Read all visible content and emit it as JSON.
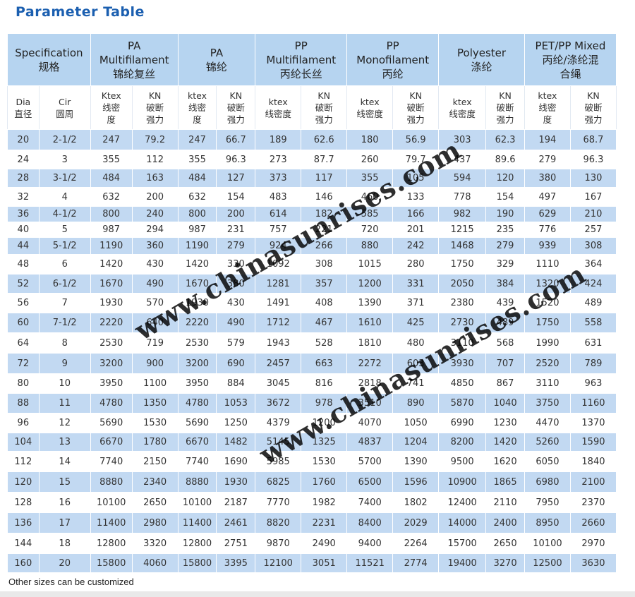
{
  "title": "Parameter Table",
  "header": {
    "specification": [
      "Specification",
      "规格"
    ],
    "groups": [
      [
        "PA",
        "Multifilament",
        "锦纶复丝"
      ],
      [
        "PA",
        "锦纶"
      ],
      [
        "PP",
        "Multifilament",
        "丙纶长丝"
      ],
      [
        "PP",
        "Monofilament",
        "丙纶"
      ],
      [
        "Polyester",
        "涤纶"
      ],
      [
        "PET/PP Mixed",
        "丙纶/涤纶混",
        "合绳"
      ]
    ],
    "sub": [
      [
        "Dia",
        "直径"
      ],
      [
        "Cir",
        "圆周"
      ],
      [
        "Ktex",
        "线密",
        "度"
      ],
      [
        "KN",
        "破断",
        "强力"
      ],
      [
        "ktex",
        "线密",
        "度"
      ],
      [
        "KN",
        "破断",
        "强力"
      ],
      [
        "ktex",
        "线密度"
      ],
      [
        "KN",
        "破断",
        "强力"
      ],
      [
        "ktex",
        "线密度"
      ],
      [
        "KN",
        "破断",
        "强力"
      ],
      [
        "ktex",
        "线密度"
      ],
      [
        "KN",
        "破断",
        "强力"
      ],
      [
        "ktex",
        "线密",
        "度"
      ],
      [
        "KN",
        "破断",
        "强力"
      ]
    ]
  },
  "rows": [
    [
      "20",
      "2-1/2",
      "247",
      "79.2",
      "247",
      "66.7",
      "189",
      "62.6",
      "180",
      "56.9",
      "303",
      "62.3",
      "194",
      "68.7"
    ],
    [
      "24",
      "3",
      "355",
      "112",
      "355",
      "96.3",
      "273",
      "87.7",
      "260",
      "79.7",
      "437",
      "89.6",
      "279",
      "96.3"
    ],
    [
      "28",
      "3-1/2",
      "484",
      "163",
      "484",
      "127",
      "373",
      "117",
      "355",
      "105",
      "594",
      "120",
      "380",
      "130"
    ],
    [
      "32",
      "4",
      "632",
      "200",
      "632",
      "154",
      "483",
      "146",
      "460",
      "133",
      "778",
      "154",
      "497",
      "167"
    ],
    [
      "36",
      "4-1/2",
      "800",
      "240",
      "800",
      "200",
      "614",
      "182",
      "585",
      "166",
      "982",
      "190",
      "629",
      "210"
    ],
    [
      "40",
      "5",
      "987",
      "294",
      "987",
      "231",
      "757",
      "221",
      "720",
      "201",
      "1215",
      "235",
      "776",
      "257"
    ],
    [
      "44",
      "5-1/2",
      "1190",
      "360",
      "1190",
      "279",
      "924",
      "266",
      "880",
      "242",
      "1468",
      "279",
      "939",
      "308"
    ],
    [
      "48",
      "6",
      "1420",
      "430",
      "1420",
      "330",
      "1092",
      "308",
      "1015",
      "280",
      "1750",
      "329",
      "1110",
      "364"
    ],
    [
      "52",
      "6-1/2",
      "1670",
      "490",
      "1670",
      "380",
      "1281",
      "357",
      "1200",
      "331",
      "2050",
      "384",
      "1320",
      "424"
    ],
    [
      "56",
      "7",
      "1930",
      "570",
      "1930",
      "430",
      "1491",
      "408",
      "1390",
      "371",
      "2380",
      "439",
      "1520",
      "489"
    ],
    [
      "60",
      "7-1/2",
      "2220",
      "640",
      "2220",
      "490",
      "1712",
      "467",
      "1610",
      "425",
      "2730",
      "489",
      "1750",
      "558"
    ],
    [
      "64",
      "8",
      "2530",
      "719",
      "2530",
      "579",
      "1943",
      "528",
      "1810",
      "480",
      "3110",
      "568",
      "1990",
      "631"
    ],
    [
      "72",
      "9",
      "3200",
      "900",
      "3200",
      "690",
      "2457",
      "663",
      "2272",
      "603",
      "3930",
      "707",
      "2520",
      "789"
    ],
    [
      "80",
      "10",
      "3950",
      "1100",
      "3950",
      "884",
      "3045",
      "816",
      "2818",
      "741",
      "4850",
      "867",
      "3110",
      "963"
    ],
    [
      "88",
      "11",
      "4780",
      "1350",
      "4780",
      "1053",
      "3672",
      "978",
      "3510",
      "890",
      "5870",
      "1040",
      "3750",
      "1160"
    ],
    [
      "96",
      "12",
      "5690",
      "1530",
      "5690",
      "1250",
      "4379",
      "1200",
      "4070",
      "1050",
      "6990",
      "1230",
      "4470",
      "1370"
    ],
    [
      "104",
      "13",
      "6670",
      "1780",
      "6670",
      "1482",
      "5145",
      "1325",
      "4837",
      "1204",
      "8200",
      "1420",
      "5260",
      "1590"
    ],
    [
      "112",
      "14",
      "7740",
      "2150",
      "7740",
      "1690",
      "5985",
      "1530",
      "5700",
      "1390",
      "9500",
      "1620",
      "6050",
      "1840"
    ],
    [
      "120",
      "15",
      "8880",
      "2340",
      "8880",
      "1930",
      "6825",
      "1760",
      "6500",
      "1596",
      "10900",
      "1865",
      "6980",
      "2100"
    ],
    [
      "128",
      "16",
      "10100",
      "2650",
      "10100",
      "2187",
      "7770",
      "1982",
      "7400",
      "1802",
      "12400",
      "2110",
      "7950",
      "2370"
    ],
    [
      "136",
      "17",
      "11400",
      "2980",
      "11400",
      "2461",
      "8820",
      "2231",
      "8400",
      "2029",
      "14000",
      "2400",
      "8950",
      "2660"
    ],
    [
      "144",
      "18",
      "12800",
      "3320",
      "12800",
      "2751",
      "9870",
      "2490",
      "9400",
      "2264",
      "15700",
      "2650",
      "10100",
      "2970"
    ],
    [
      "160",
      "20",
      "15800",
      "4060",
      "15800",
      "3395",
      "12100",
      "3051",
      "11521",
      "2774",
      "19400",
      "3270",
      "12500",
      "3630"
    ]
  ],
  "note": "Other sizes can be customized",
  "watermarks": [
    "www.chinasunrises.com",
    "www.chinasunrises.com"
  ]
}
